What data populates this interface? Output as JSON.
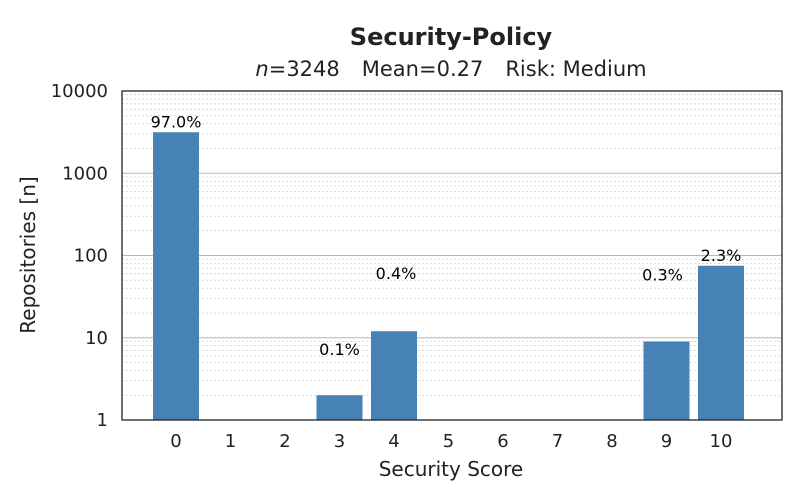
{
  "chart_data": {
    "type": "bar",
    "title": "Security-Policy",
    "subtitle": {
      "n_symbol": "n",
      "n_value": "=3248",
      "mean": "Mean=0.27",
      "risk": "Risk: Medium"
    },
    "xlabel": "Security Score",
    "ylabel": "Repositories [n]",
    "y_scale": "log",
    "ylim": [
      1,
      10000
    ],
    "y_ticks": [
      1,
      10,
      100,
      1000,
      10000
    ],
    "y_tick_labels": [
      "1",
      "10",
      "100",
      "1000",
      "10000"
    ],
    "categories": [
      "0",
      "1",
      "2",
      "3",
      "4",
      "5",
      "6",
      "7",
      "8",
      "9",
      "10"
    ],
    "values": [
      3150,
      0,
      0,
      2,
      12,
      0,
      0,
      0,
      0,
      9,
      75
    ],
    "data_labels": [
      "97.0%",
      "",
      "",
      "0.1%",
      "0.4%",
      "",
      "",
      "",
      "",
      "0.3%",
      "2.3%"
    ],
    "bar_color": "#4682b4",
    "grid": true,
    "legend": "none"
  }
}
